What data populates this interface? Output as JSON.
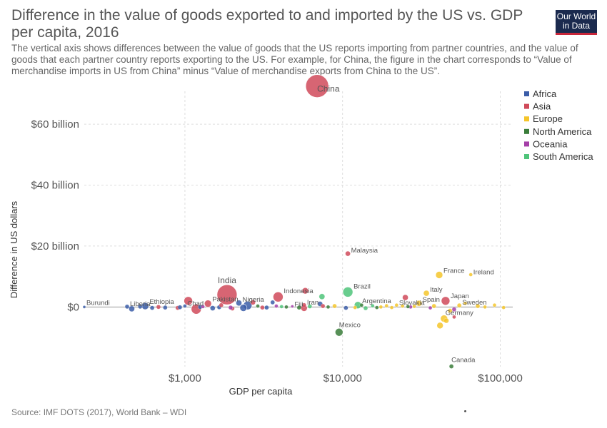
{
  "title": "Difference in the value of goods exported to and imported by the US vs. GDP per capita, 2016",
  "subtitle": "The vertical axis shows differences between the value of goods that the US reports importing from partner countries, and the value of goods that each partner country reports exporting to the US. For example, for China, the figure in the chart corresponds to “Value of merchandise imports in US from China” minus “Value of merchandise exports from China to the US”.",
  "logo": {
    "line1": "Our World",
    "line2": "in Data"
  },
  "source": "Source: IMF DOTS (2017), World Bank – WDI",
  "colors": {
    "Africa": "#3b5da8",
    "Asia": "#d04a5a",
    "Europe": "#f5c52b",
    "North America": "#3a7d3a",
    "Oceania": "#a53fa8",
    "South America": "#4fc47a"
  },
  "chart_data": {
    "type": "scatter",
    "xlabel": "GDP per capita",
    "ylabel": "Difference in US dollars",
    "x_scale": "log",
    "xlim": [
      230,
      120000
    ],
    "ylim": [
      -21000000000,
      75000000000
    ],
    "x_ticks": [
      {
        "value": 1000,
        "label": "$1,000"
      },
      {
        "value": 10000,
        "label": "$10,000"
      },
      {
        "value": 100000,
        "label": "$100,000"
      }
    ],
    "y_ticks": [
      {
        "value": 0,
        "label": "$0"
      },
      {
        "value": 20000000000,
        "label": "$20 billion"
      },
      {
        "value": 40000000000,
        "label": "$40 billion"
      },
      {
        "value": 60000000000,
        "label": "$60 billion"
      }
    ],
    "grid": true,
    "legend_position": "right",
    "legend": [
      "Africa",
      "Asia",
      "Europe",
      "North America",
      "Oceania",
      "South America"
    ],
    "points": [
      {
        "label": "China",
        "region": "Asia",
        "x": 6900,
        "y": 72500000000,
        "size": 16
      },
      {
        "label": "India",
        "region": "Asia",
        "x": 1850,
        "y": 4000000000,
        "size": 14
      },
      {
        "label": "Malaysia",
        "region": "Asia",
        "x": 10800,
        "y": 17500000000,
        "size": 3.5
      },
      {
        "label": "France",
        "region": "Europe",
        "x": 41000,
        "y": 10500000000,
        "size": 5
      },
      {
        "label": "Ireland",
        "region": "Europe",
        "x": 65000,
        "y": 10600000000,
        "size": 2.5
      },
      {
        "label": "Indonesia",
        "region": "Asia",
        "x": 3900,
        "y": 3300000000,
        "size": 7
      },
      {
        "label": "Nigeria",
        "region": "Africa",
        "x": 2200,
        "y": 1300000000,
        "size": 4
      },
      {
        "label": "Pakistan",
        "region": "Asia",
        "x": 1400,
        "y": 1100000000,
        "size": 5
      },
      {
        "label": "Chad",
        "region": "Africa",
        "x": 1000,
        "y": 300000000,
        "size": 2.5
      },
      {
        "label": "Ethiopia",
        "region": "Africa",
        "x": 560,
        "y": 300000000,
        "size": 5
      },
      {
        "label": "Liberia",
        "region": "Africa",
        "x": 430,
        "y": 100000000,
        "size": 3
      },
      {
        "label": "Burundi",
        "region": "Africa",
        "x": 230,
        "y": 0,
        "size": 2
      },
      {
        "label": "Fiji",
        "region": "Oceania",
        "x": 4800,
        "y": 200000000,
        "size": 2
      },
      {
        "label": "Iran",
        "region": "Asia",
        "x": 5700,
        "y": 600000000,
        "size": 3
      },
      {
        "label": "Brazil",
        "region": "South America",
        "x": 10800,
        "y": 4900000000,
        "size": 7
      },
      {
        "label": "Argentina",
        "region": "South America",
        "x": 12500,
        "y": 600000000,
        "size": 5
      },
      {
        "label": "Slovakia",
        "region": "Europe",
        "x": 22000,
        "y": 600000000,
        "size": 2.5
      },
      {
        "label": "Italy",
        "region": "Europe",
        "x": 34000,
        "y": 4500000000,
        "size": 4
      },
      {
        "label": "Spain",
        "region": "Europe",
        "x": 30500,
        "y": 1200000000,
        "size": 4
      },
      {
        "label": "Japan",
        "region": "Asia",
        "x": 45000,
        "y": 2000000000,
        "size": 6
      },
      {
        "label": "Sweden",
        "region": "Europe",
        "x": 55000,
        "y": 500000000,
        "size": 3
      },
      {
        "label": "Germany",
        "region": "Europe",
        "x": 44000,
        "y": -3800000000,
        "size": 5
      },
      {
        "label": "Mexico",
        "region": "North America",
        "x": 9500,
        "y": -8300000000,
        "size": 5.5
      },
      {
        "label": "Canada",
        "region": "North America",
        "x": 49000,
        "y": -19500000000,
        "size": 3
      },
      {
        "label": "",
        "region": "Africa",
        "x": 2500,
        "y": 500000000,
        "size": 6
      },
      {
        "label": "",
        "region": "Asia",
        "x": 1050,
        "y": 2000000000,
        "size": 6
      },
      {
        "label": "",
        "region": "Asia",
        "x": 1180,
        "y": -700000000,
        "size": 7
      },
      {
        "label": "",
        "region": "Asia",
        "x": 5800,
        "y": 5300000000,
        "size": 4.5
      },
      {
        "label": "",
        "region": "Asia",
        "x": 5700,
        "y": -400000000,
        "size": 4.5
      },
      {
        "label": "",
        "region": "Asia",
        "x": 25000,
        "y": 3100000000,
        "size": 4
      },
      {
        "label": "",
        "region": "Asia",
        "x": 2700,
        "y": 1500000000,
        "size": 3.5
      },
      {
        "label": "",
        "region": "Asia",
        "x": 3100,
        "y": -200000000,
        "size": 3
      },
      {
        "label": "",
        "region": "Asia",
        "x": 7500,
        "y": 300000000,
        "size": 3
      },
      {
        "label": "",
        "region": "Asia",
        "x": 51000,
        "y": -3300000000,
        "size": 2.5
      },
      {
        "label": "",
        "region": "Asia",
        "x": 900,
        "y": -300000000,
        "size": 3
      },
      {
        "label": "",
        "region": "Asia",
        "x": 680,
        "y": 0,
        "size": 3
      },
      {
        "label": "",
        "region": "Africa",
        "x": 460,
        "y": -600000000,
        "size": 4
      },
      {
        "label": "",
        "region": "Africa",
        "x": 520,
        "y": 100000000,
        "size": 3
      },
      {
        "label": "",
        "region": "Africa",
        "x": 620,
        "y": -300000000,
        "size": 3
      },
      {
        "label": "",
        "region": "Africa",
        "x": 750,
        "y": -200000000,
        "size": 3
      },
      {
        "label": "",
        "region": "Africa",
        "x": 930,
        "y": -100000000,
        "size": 3
      },
      {
        "label": "",
        "region": "Africa",
        "x": 1250,
        "y": 0,
        "size": 3
      },
      {
        "label": "",
        "region": "Africa",
        "x": 1500,
        "y": -400000000,
        "size": 3.5
      },
      {
        "label": "",
        "region": "Africa",
        "x": 1650,
        "y": -100000000,
        "size": 3
      },
      {
        "label": "",
        "region": "Africa",
        "x": 2350,
        "y": -300000000,
        "size": 5
      },
      {
        "label": "",
        "region": "Africa",
        "x": 3300,
        "y": -200000000,
        "size": 3
      },
      {
        "label": "",
        "region": "Africa",
        "x": 3600,
        "y": 1500000000,
        "size": 3
      },
      {
        "label": "",
        "region": "Africa",
        "x": 7200,
        "y": 1000000000,
        "size": 3.5
      },
      {
        "label": "",
        "region": "Africa",
        "x": 10500,
        "y": -300000000,
        "size": 3
      },
      {
        "label": "",
        "region": "Asia",
        "x": 1700,
        "y": 600000000,
        "size": 3
      },
      {
        "label": "",
        "region": "Asia",
        "x": 2000,
        "y": -500000000,
        "size": 3
      },
      {
        "label": "",
        "region": "Oceania",
        "x": 1950,
        "y": -200000000,
        "size": 3
      },
      {
        "label": "",
        "region": "Oceania",
        "x": 1300,
        "y": 100000000,
        "size": 2.5
      },
      {
        "label": "",
        "region": "Oceania",
        "x": 3800,
        "y": 300000000,
        "size": 2.5
      },
      {
        "label": "",
        "region": "Oceania",
        "x": 27000,
        "y": 0,
        "size": 2.5
      },
      {
        "label": "",
        "region": "Oceania",
        "x": 36000,
        "y": -300000000,
        "size": 2.5
      },
      {
        "label": "",
        "region": "Oceania",
        "x": 51000,
        "y": -800000000,
        "size": 3
      },
      {
        "label": "",
        "region": "South America",
        "x": 7400,
        "y": 3400000000,
        "size": 4
      },
      {
        "label": "",
        "region": "South America",
        "x": 6200,
        "y": 200000000,
        "size": 3
      },
      {
        "label": "",
        "region": "South America",
        "x": 14000,
        "y": -400000000,
        "size": 3
      },
      {
        "label": "",
        "region": "South America",
        "x": 4100,
        "y": 100000000,
        "size": 2.5
      },
      {
        "label": "",
        "region": "South America",
        "x": 15500,
        "y": 400000000,
        "size": 2.5
      },
      {
        "label": "",
        "region": "North America",
        "x": 2900,
        "y": 300000000,
        "size": 2.5
      },
      {
        "label": "",
        "region": "North America",
        "x": 4400,
        "y": 0,
        "size": 2.5
      },
      {
        "label": "",
        "region": "North America",
        "x": 5300,
        "y": -200000000,
        "size": 3
      },
      {
        "label": "",
        "region": "North America",
        "x": 8100,
        "y": 0,
        "size": 2.5
      },
      {
        "label": "",
        "region": "North America",
        "x": 13200,
        "y": 600000000,
        "size": 2.5
      },
      {
        "label": "",
        "region": "North America",
        "x": 16500,
        "y": -200000000,
        "size": 2.5
      },
      {
        "label": "",
        "region": "North America",
        "x": 26000,
        "y": 100000000,
        "size": 2.5
      },
      {
        "label": "",
        "region": "Europe",
        "x": 8900,
        "y": 300000000,
        "size": 3
      },
      {
        "label": "",
        "region": "Europe",
        "x": 12000,
        "y": -200000000,
        "size": 2.5
      },
      {
        "label": "",
        "region": "Europe",
        "x": 17500,
        "y": 0,
        "size": 2.5
      },
      {
        "label": "",
        "region": "Europe",
        "x": 19000,
        "y": 400000000,
        "size": 2.5
      },
      {
        "label": "",
        "region": "Europe",
        "x": 20500,
        "y": -200000000,
        "size": 2.5
      },
      {
        "label": "",
        "region": "Europe",
        "x": 24000,
        "y": 300000000,
        "size": 2.5
      },
      {
        "label": "",
        "region": "Europe",
        "x": 28500,
        "y": 200000000,
        "size": 2.5
      },
      {
        "label": "",
        "region": "Europe",
        "x": 38000,
        "y": 300000000,
        "size": 3
      },
      {
        "label": "",
        "region": "Europe",
        "x": 41500,
        "y": -6100000000,
        "size": 4.5
      },
      {
        "label": "",
        "region": "Europe",
        "x": 45500,
        "y": -4500000000,
        "size": 3.5
      },
      {
        "label": "",
        "region": "Europe",
        "x": 48000,
        "y": -1200000000,
        "size": 3
      },
      {
        "label": "",
        "region": "Europe",
        "x": 60000,
        "y": 1200000000,
        "size": 2.5
      },
      {
        "label": "",
        "region": "Europe",
        "x": 72000,
        "y": 300000000,
        "size": 3
      },
      {
        "label": "",
        "region": "Europe",
        "x": 80000,
        "y": 0,
        "size": 2.5
      },
      {
        "label": "",
        "region": "Europe",
        "x": 92000,
        "y": 600000000,
        "size": 2.5
      },
      {
        "label": "",
        "region": "Europe",
        "x": 105000,
        "y": -200000000,
        "size": 2.5
      }
    ]
  }
}
